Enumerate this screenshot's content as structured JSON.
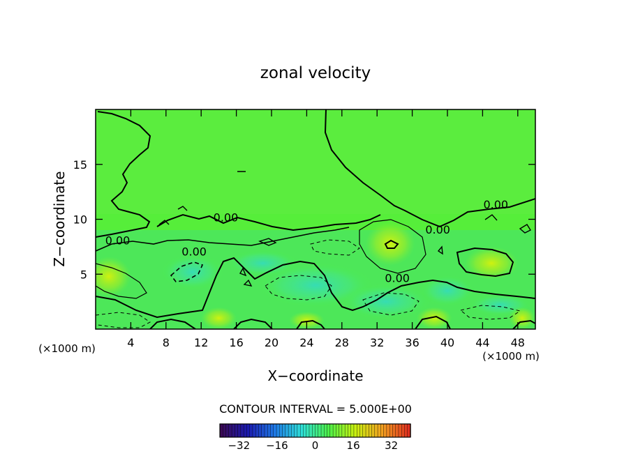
{
  "chart_data": {
    "type": "heatmap",
    "title": "zonal velocity",
    "xlabel": "X−coordinate",
    "ylabel": "Z−coordinate",
    "x_unit_left": "(×1000 m)",
    "x_unit_right": "(×1000 m)",
    "xlim": [
      0,
      50
    ],
    "ylim": [
      0,
      20
    ],
    "x_ticks": [
      4,
      8,
      12,
      16,
      20,
      24,
      28,
      32,
      36,
      40,
      44,
      48
    ],
    "y_ticks": [
      5,
      10,
      15
    ],
    "contour_interval_text": "CONTOUR INTERVAL = 5.000E+00",
    "colorbar": {
      "range": [
        -40,
        40
      ],
      "ticks": [
        -32,
        -16,
        0,
        16,
        32
      ],
      "colors": [
        "#3a0a55",
        "#1b1bb0",
        "#1e7ae6",
        "#2fe0d8",
        "#4cf04a",
        "#c8f010",
        "#f2a020",
        "#e03020"
      ]
    },
    "contour_labels": [
      {
        "text": "0.00",
        "x": 2.5,
        "y": 7.7
      },
      {
        "text": "0.00",
        "x": 14.8,
        "y": 9.8
      },
      {
        "text": "0.00",
        "x": 11.2,
        "y": 6.7
      },
      {
        "text": "0.00",
        "x": 38.9,
        "y": 8.7
      },
      {
        "text": "0.00",
        "x": 45.5,
        "y": 11.0
      },
      {
        "text": "0.00",
        "x": 34.3,
        "y": 4.3
      }
    ],
    "regions": [
      {
        "kind": "negative",
        "value": -12,
        "x": 11,
        "y": 5.2,
        "rx": 3.5,
        "ry": 1.6
      },
      {
        "kind": "negative",
        "value": -10,
        "x": 25,
        "y": 4.0,
        "rx": 6.5,
        "ry": 2.0
      },
      {
        "kind": "negative",
        "value": -9,
        "x": 33,
        "y": 2.5,
        "rx": 5.0,
        "ry": 1.6
      },
      {
        "kind": "negative",
        "value": -8,
        "x": 40,
        "y": 3.5,
        "rx": 3.0,
        "ry": 1.4
      },
      {
        "kind": "negative",
        "value": -7,
        "x": 19,
        "y": 6.0,
        "rx": 4.0,
        "ry": 1.2
      },
      {
        "kind": "negative",
        "value": -6,
        "x": 46,
        "y": 2.2,
        "rx": 3.5,
        "ry": 1.0
      },
      {
        "kind": "positive",
        "value": 10,
        "x": 45,
        "y": 6.0,
        "rx": 3.0,
        "ry": 1.5
      },
      {
        "kind": "positive",
        "value": 7,
        "x": 33.5,
        "y": 7.8,
        "rx": 2.8,
        "ry": 2.0
      },
      {
        "kind": "positive",
        "value": 6,
        "x": 1.5,
        "y": 4.8,
        "rx": 2.5,
        "ry": 1.8
      },
      {
        "kind": "positive",
        "value": 6,
        "x": 14,
        "y": 1.0,
        "rx": 2.0,
        "ry": 1.0
      },
      {
        "kind": "positive",
        "value": 6,
        "x": 24,
        "y": 0.8,
        "rx": 2.0,
        "ry": 0.8
      },
      {
        "kind": "positive",
        "value": 5,
        "x": 38.5,
        "y": 1.0,
        "rx": 2.0,
        "ry": 1.0
      },
      {
        "kind": "positive",
        "value": 5,
        "x": 48.5,
        "y": 1.0,
        "rx": 1.5,
        "ry": 1.0
      }
    ]
  }
}
